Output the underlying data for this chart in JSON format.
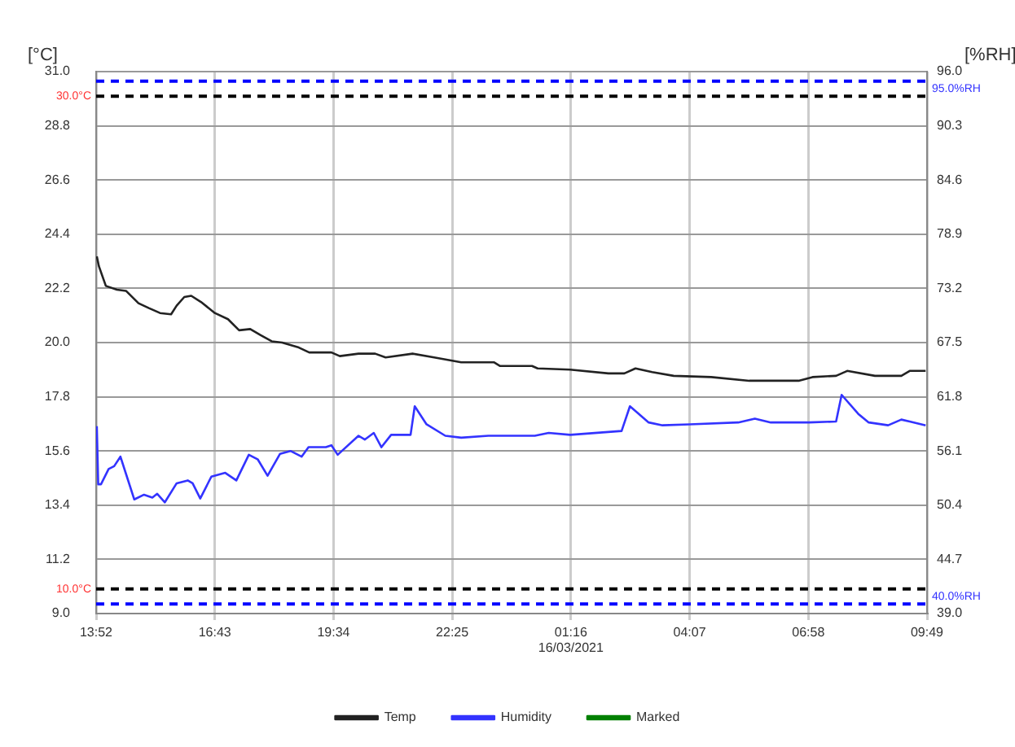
{
  "chart_data": {
    "type": "line",
    "ylabel": "[°C]",
    "y2label": "[%RH]",
    "xlim": [
      "2021-03-15T13:52",
      "2021-03-16T09:49"
    ],
    "xticks": [
      {
        "value": "2021-03-15T13:52",
        "label": "13:52"
      },
      {
        "value": "2021-03-15T16:43",
        "label": "16:43"
      },
      {
        "value": "2021-03-15T19:34",
        "label": "19:34"
      },
      {
        "value": "2021-03-15T22:25",
        "label": "22:25"
      },
      {
        "value": "2021-03-16T01:16",
        "label": "01:16\n16/03/2021"
      },
      {
        "value": "2021-03-16T04:07",
        "label": "04:07"
      },
      {
        "value": "2021-03-16T06:58",
        "label": "06:58"
      },
      {
        "value": "2021-03-16T09:49",
        "label": "09:49"
      }
    ],
    "ylim": [
      9,
      31
    ],
    "yticks": [
      {
        "value": 9,
        "label": "9.0"
      },
      {
        "value": 11.2,
        "label": "11.2"
      },
      {
        "value": 13.4,
        "label": "13.4"
      },
      {
        "value": 15.6,
        "label": "15.6"
      },
      {
        "value": 17.8,
        "label": "17.8"
      },
      {
        "value": 20,
        "label": "20.0"
      },
      {
        "value": 22.2,
        "label": "22.2"
      },
      {
        "value": 24.4,
        "label": "24.4"
      },
      {
        "value": 26.6,
        "label": "26.6"
      },
      {
        "value": 28.8,
        "label": "28.8"
      },
      {
        "value": 31,
        "label": "31.0"
      }
    ],
    "y2lim": [
      39,
      96
    ],
    "y2ticks": [
      {
        "value": 39,
        "label": "39.0"
      },
      {
        "value": 44.7,
        "label": "44.7"
      },
      {
        "value": 50.4,
        "label": "50.4"
      },
      {
        "value": 56.1,
        "label": "56.1"
      },
      {
        "value": 61.8,
        "label": "61.8"
      },
      {
        "value": 67.5,
        "label": "67.5"
      },
      {
        "value": 73.2,
        "label": "73.2"
      },
      {
        "value": 78.9,
        "label": "78.9"
      },
      {
        "value": 84.6,
        "label": "84.6"
      },
      {
        "value": 90.3,
        "label": "90.3"
      },
      {
        "value": 96,
        "label": "96.0"
      }
    ],
    "grid": true,
    "legend": "bottom",
    "marker": "none",
    "line_style": "solid",
    "ref_lines": [
      {
        "axis": "y",
        "value": 30,
        "label": "30.0°C",
        "color": "#000000",
        "line_style": "dashed"
      },
      {
        "axis": "y",
        "value": 10,
        "label": "10.0°C",
        "color": "#000000",
        "line_style": "dashed"
      },
      {
        "axis": "y2",
        "value": 95,
        "label": "95.0%RH",
        "color": "#0000ff",
        "line_style": "dashed"
      },
      {
        "axis": "y2",
        "value": 40,
        "label": "40.0%RH",
        "color": "#0000ff",
        "line_style": "dashed"
      }
    ],
    "series": [
      {
        "name": "Temp",
        "color": "#222222",
        "x": [
          "2021-03-15T13:53",
          "2021-03-15T13:56",
          "2021-03-15T14:06",
          "2021-03-15T14:22",
          "2021-03-15T14:35",
          "2021-03-15T14:53",
          "2021-03-15T15:08",
          "2021-03-15T15:24",
          "2021-03-15T15:40",
          "2021-03-15T15:48",
          "2021-03-15T15:59",
          "2021-03-15T16:09",
          "2021-03-15T16:23",
          "2021-03-15T16:43",
          "2021-03-15T17:02",
          "2021-03-15T17:18",
          "2021-03-15T17:34",
          "2021-03-15T17:49",
          "2021-03-15T18:05",
          "2021-03-15T18:20",
          "2021-03-15T18:44",
          "2021-03-15T18:59",
          "2021-03-15T19:31",
          "2021-03-15T19:43",
          "2021-03-15T20:10",
          "2021-03-15T20:34",
          "2021-03-15T20:49",
          "2021-03-15T21:28",
          "2021-03-15T21:59",
          "2021-03-15T22:38",
          "2021-03-15T23:25",
          "2021-03-15T23:34",
          "2021-03-16T00:20",
          "2021-03-16T00:28",
          "2021-03-16T01:15",
          "2021-03-16T02:10",
          "2021-03-16T02:33",
          "2021-03-16T02:49",
          "2021-03-16T03:13",
          "2021-03-16T03:44",
          "2021-03-16T04:38",
          "2021-03-16T05:33",
          "2021-03-16T06:44",
          "2021-03-16T07:04",
          "2021-03-16T07:38",
          "2021-03-16T07:54",
          "2021-03-16T08:34",
          "2021-03-16T09:12",
          "2021-03-16T09:24",
          "2021-03-16T09:47"
        ],
        "values": [
          23.5,
          23.1,
          22.3,
          22.15,
          22.1,
          21.6,
          21.4,
          21.2,
          21.15,
          21.5,
          21.85,
          21.9,
          21.65,
          21.2,
          20.95,
          20.5,
          20.55,
          20.3,
          20.05,
          20.0,
          19.8,
          19.6,
          19.6,
          19.45,
          19.55,
          19.55,
          19.4,
          19.55,
          19.4,
          19.2,
          19.2,
          19.05,
          19.05,
          18.95,
          18.9,
          18.75,
          18.75,
          18.95,
          18.8,
          18.65,
          18.6,
          18.45,
          18.45,
          18.6,
          18.65,
          18.85,
          18.65,
          18.65,
          18.85,
          18.85
        ]
      },
      {
        "name": "Humidity",
        "color": "#3333ff",
        "axis": "y2",
        "x": [
          "2021-03-15T13:53",
          "2021-03-15T13:55",
          "2021-03-15T13:59",
          "2021-03-15T14:10",
          "2021-03-15T14:18",
          "2021-03-15T14:27",
          "2021-03-15T14:35",
          "2021-03-15T14:47",
          "2021-03-15T15:01",
          "2021-03-15T15:13",
          "2021-03-15T15:20",
          "2021-03-15T15:31",
          "2021-03-15T15:48",
          "2021-03-15T16:04",
          "2021-03-15T16:11",
          "2021-03-15T16:22",
          "2021-03-15T16:38",
          "2021-03-15T16:58",
          "2021-03-15T17:14",
          "2021-03-15T17:32",
          "2021-03-15T17:45",
          "2021-03-15T17:59",
          "2021-03-15T18:17",
          "2021-03-15T18:32",
          "2021-03-15T18:48",
          "2021-03-15T18:58",
          "2021-03-15T19:23",
          "2021-03-15T19:31",
          "2021-03-15T19:40",
          "2021-03-15T20:10",
          "2021-03-15T20:19",
          "2021-03-15T20:32",
          "2021-03-15T20:43",
          "2021-03-15T20:57",
          "2021-03-15T21:25",
          "2021-03-15T21:31",
          "2021-03-15T21:48",
          "2021-03-15T22:15",
          "2021-03-15T22:38",
          "2021-03-15T23:17",
          "2021-03-16T00:24",
          "2021-03-16T00:44",
          "2021-03-16T01:15",
          "2021-03-16T02:29",
          "2021-03-16T02:41",
          "2021-03-16T03:08",
          "2021-03-16T03:28",
          "2021-03-16T04:07",
          "2021-03-16T05:17",
          "2021-03-16T05:41",
          "2021-03-16T06:04",
          "2021-03-16T06:59",
          "2021-03-16T07:38",
          "2021-03-16T07:46",
          "2021-03-16T08:10",
          "2021-03-16T08:25",
          "2021-03-16T08:53",
          "2021-03-16T09:12",
          "2021-03-16T09:24",
          "2021-03-16T09:47"
        ],
        "values": [
          58.7,
          52.6,
          52.6,
          54.2,
          54.5,
          55.5,
          53.7,
          51.0,
          51.5,
          51.2,
          51.6,
          50.7,
          52.7,
          53.0,
          52.7,
          51.1,
          53.4,
          53.8,
          53.0,
          55.7,
          55.2,
          53.5,
          55.8,
          56.1,
          55.5,
          56.5,
          56.5,
          56.7,
          55.7,
          57.7,
          57.3,
          58.0,
          56.5,
          57.8,
          57.8,
          60.8,
          58.9,
          57.7,
          57.5,
          57.7,
          57.7,
          58.0,
          57.8,
          58.2,
          60.8,
          59.1,
          58.8,
          58.9,
          59.1,
          59.5,
          59.1,
          59.1,
          59.2,
          62.0,
          60.0,
          59.1,
          58.8,
          59.4,
          59.2,
          58.8
        ]
      },
      {
        "name": "Marked",
        "color": "#008000"
      }
    ]
  }
}
